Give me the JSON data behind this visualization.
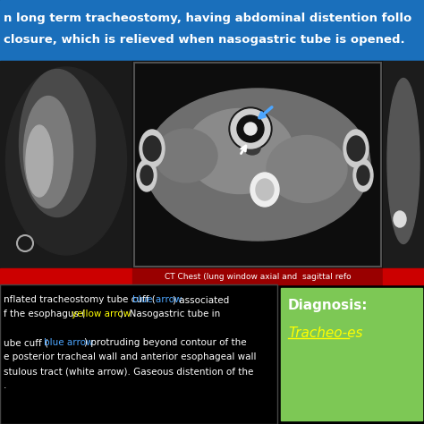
{
  "bg_color": "#000000",
  "header_bg": "#1a6fbb",
  "header_line1": "n long term tracheostomy, having abdominal distention follo",
  "header_line2": "closure, which is relieved when nasogastric tube is opened.",
  "header_text_color": "#ffffff",
  "header_fontsize": 9.5,
  "ct_label": "CT Chest (lung window axial and  sagittal refo",
  "ct_label_color": "#ffffff",
  "red_bar_color": "#cc0000",
  "dark_red_color": "#990000",
  "caption_text_color": "#ffffff",
  "blue_color": "#4da6ff",
  "yellow_color": "#ffff00",
  "diagnosis_bg": "#7dc855",
  "diagnosis_text": "Diagnosis:",
  "diagnosis_sub": "Tracheo-es",
  "diagnosis_text_color": "#ffffff",
  "diagnosis_sub_color": "#ffff00",
  "diagnosis_fontsize": 11,
  "figsize": [
    4.74,
    4.74
  ],
  "dpi": 100
}
